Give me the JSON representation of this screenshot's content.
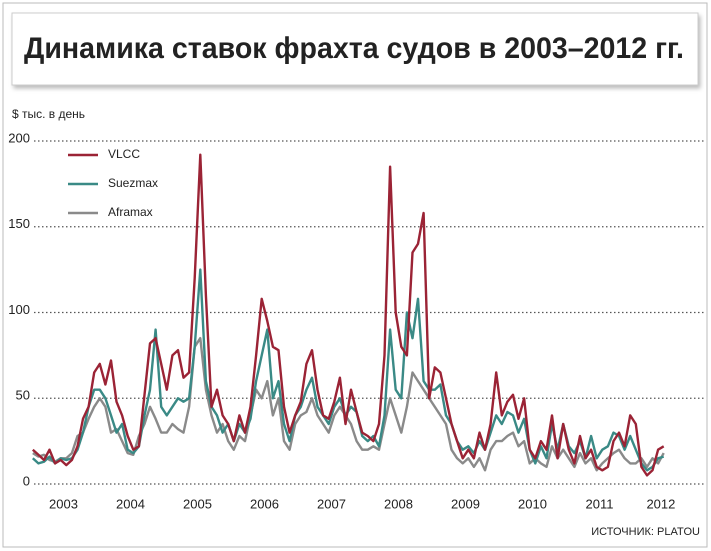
{
  "chart_data": {
    "type": "line",
    "title": "Динамика ставок фрахта судов в 2003–2012 гг.",
    "y_label": "$ тыс. в день",
    "source": "ИСТОЧНИК: PLATOU",
    "categories": [
      null,
      null,
      null,
      null,
      null,
      null,
      "2003",
      null,
      null,
      null,
      null,
      null,
      null,
      null,
      null,
      null,
      null,
      null,
      "2004",
      null,
      null,
      null,
      null,
      null,
      null,
      null,
      null,
      null,
      null,
      null,
      "2005",
      null,
      null,
      null,
      null,
      null,
      null,
      null,
      null,
      null,
      null,
      null,
      "2006",
      null,
      null,
      null,
      null,
      null,
      null,
      null,
      null,
      null,
      null,
      null,
      "2007",
      null,
      null,
      null,
      null,
      null,
      null,
      null,
      null,
      null,
      null,
      null,
      "2008",
      null,
      null,
      null,
      null,
      null,
      null,
      null,
      null,
      null,
      null,
      null,
      "2009",
      null,
      null,
      null,
      null,
      null,
      null,
      null,
      null,
      null,
      null,
      null,
      "2010",
      null,
      null,
      null,
      null,
      null,
      null,
      null,
      null,
      null,
      null,
      null,
      "2011",
      null,
      null,
      null,
      null,
      null,
      null,
      null,
      null,
      null,
      null,
      "2012"
    ],
    "series": [
      {
        "name": "VLCC",
        "color": "#9b2335",
        "values": [
          20,
          17,
          14,
          20,
          12,
          14,
          11,
          14,
          22,
          38,
          45,
          65,
          70,
          58,
          72,
          48,
          40,
          28,
          20,
          22,
          52,
          82,
          85,
          70,
          55,
          75,
          78,
          62,
          65,
          120,
          192,
          110,
          45,
          55,
          40,
          35,
          25,
          40,
          30,
          45,
          75,
          108,
          95,
          80,
          78,
          45,
          30,
          40,
          48,
          70,
          78,
          55,
          40,
          38,
          48,
          62,
          35,
          55,
          42,
          30,
          28,
          25,
          35,
          75,
          185,
          100,
          80,
          75,
          135,
          140,
          158,
          50,
          68,
          65,
          50,
          35,
          25,
          15,
          20,
          15,
          30,
          20,
          35,
          65,
          40,
          48,
          52,
          38,
          50,
          20,
          15,
          25,
          20,
          40,
          15,
          35,
          20,
          12,
          28,
          15,
          20,
          10,
          8,
          10,
          25,
          30,
          22,
          40,
          35,
          10,
          5,
          8,
          20,
          22
        ]
      },
      {
        "name": "Suezmax",
        "color": "#3a8a86",
        "values": [
          15,
          12,
          13,
          16,
          12,
          15,
          14,
          15,
          20,
          30,
          45,
          55,
          55,
          50,
          40,
          30,
          35,
          20,
          18,
          22,
          40,
          55,
          90,
          45,
          40,
          45,
          50,
          48,
          50,
          80,
          125,
          60,
          45,
          40,
          30,
          35,
          25,
          35,
          30,
          38,
          60,
          75,
          90,
          50,
          60,
          35,
          25,
          40,
          45,
          55,
          62,
          45,
          40,
          35,
          45,
          50,
          40,
          45,
          42,
          28,
          25,
          28,
          22,
          40,
          90,
          55,
          50,
          100,
          85,
          108,
          60,
          55,
          55,
          58,
          40,
          35,
          25,
          20,
          22,
          18,
          25,
          20,
          30,
          40,
          35,
          42,
          40,
          30,
          38,
          20,
          12,
          22,
          15,
          35,
          20,
          35,
          22,
          18,
          25,
          15,
          28,
          15,
          20,
          22,
          30,
          28,
          20,
          28,
          20,
          12,
          8,
          10,
          15,
          16
        ]
      },
      {
        "name": "Aframax",
        "color": "#8a8a8a",
        "values": [
          18,
          16,
          17,
          14,
          13,
          15,
          15,
          18,
          28,
          30,
          38,
          45,
          50,
          45,
          30,
          32,
          25,
          18,
          17,
          28,
          35,
          45,
          38,
          30,
          30,
          35,
          32,
          30,
          45,
          80,
          85,
          55,
          40,
          30,
          35,
          25,
          20,
          28,
          25,
          40,
          55,
          50,
          60,
          40,
          50,
          25,
          20,
          35,
          40,
          42,
          50,
          40,
          35,
          30,
          40,
          45,
          40,
          35,
          25,
          20,
          20,
          22,
          20,
          35,
          50,
          40,
          30,
          45,
          65,
          60,
          55,
          50,
          45,
          40,
          35,
          20,
          15,
          12,
          15,
          10,
          15,
          8,
          20,
          25,
          25,
          28,
          30,
          22,
          25,
          12,
          15,
          12,
          10,
          22,
          15,
          20,
          15,
          10,
          18,
          12,
          15,
          8,
          12,
          15,
          18,
          20,
          15,
          12,
          12,
          15,
          10,
          15,
          12,
          18
        ]
      }
    ],
    "ylim": [
      0,
      200
    ],
    "yticks": [
      0,
      50,
      100,
      150,
      200
    ],
    "grid": true,
    "legend": "upper left"
  }
}
